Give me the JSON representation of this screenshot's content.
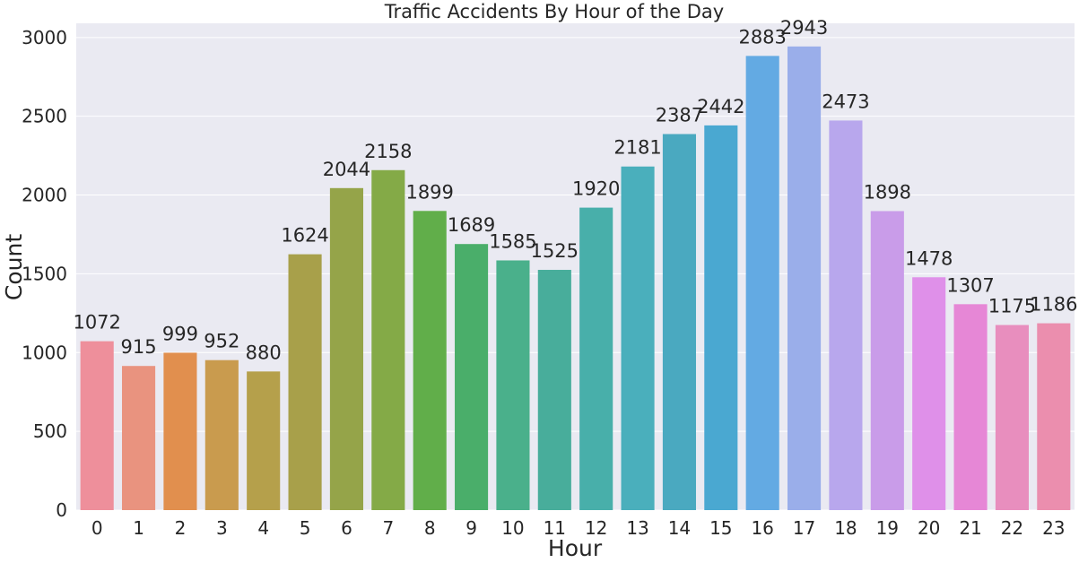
{
  "chart_data": {
    "type": "bar",
    "title": "Traffic Accidents By Hour of the Day",
    "xlabel": "Hour",
    "ylabel": "Count",
    "categories": [
      "0",
      "1",
      "2",
      "3",
      "4",
      "5",
      "6",
      "7",
      "8",
      "9",
      "10",
      "11",
      "12",
      "13",
      "14",
      "15",
      "16",
      "17",
      "18",
      "19",
      "20",
      "21",
      "22",
      "23"
    ],
    "values": [
      1072,
      915,
      999,
      952,
      880,
      1624,
      2044,
      2158,
      1899,
      1689,
      1585,
      1525,
      1920,
      2181,
      2387,
      2442,
      2883,
      2943,
      2473,
      1898,
      1478,
      1307,
      1175,
      1186
    ],
    "ylim": [
      0,
      3090
    ],
    "yticks": [
      0,
      500,
      1000,
      1500,
      2000,
      2500,
      3000
    ],
    "grid": true,
    "legend": "none",
    "plot_background": "#eaeaf2",
    "grid_color": "#ffffff",
    "colors": [
      "#ee8f9b",
      "#e9937f",
      "#e18f4e",
      "#c99b4e",
      "#b5a04b",
      "#a8a04a",
      "#95a449",
      "#84aa47",
      "#61ae4a",
      "#4aae6a",
      "#4ab08b",
      "#48ad9b",
      "#48afaa",
      "#4aafbc",
      "#4aa9c0",
      "#4aa8d1",
      "#63aae3",
      "#9aaeea",
      "#b8a7ed",
      "#c99ce9",
      "#df90e9",
      "#e687d6",
      "#e88ebe",
      "#eb8eae"
    ]
  }
}
